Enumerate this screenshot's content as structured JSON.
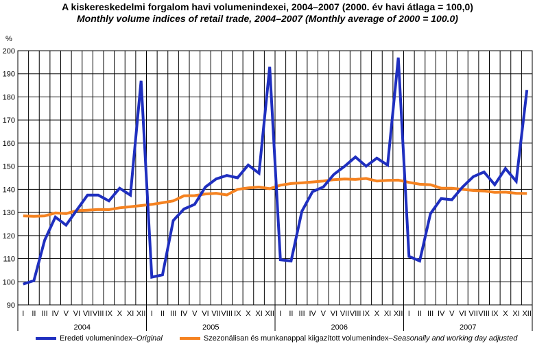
{
  "chart_data": {
    "type": "line",
    "title": "A kiskereskedelmi forgalom havi volumenindexei, 2004–2007 (2000. év havi átlaga = 100,0)",
    "subtitle": "Monthly volume indices of retail trade, 2004–2007 (Monthly average of 2000 = 100.0)",
    "ylabel": "%",
    "ylim": [
      90,
      200
    ],
    "yticks": [
      90,
      100,
      110,
      120,
      130,
      140,
      150,
      160,
      170,
      180,
      190,
      200
    ],
    "months": [
      "I",
      "II",
      "III",
      "IV",
      "V",
      "VI",
      "VII",
      "VIII",
      "IX",
      "X",
      "XI",
      "XII"
    ],
    "years": [
      "2004",
      "2005",
      "2006",
      "2007"
    ],
    "grid": true,
    "legend_position": "bottom",
    "series": [
      {
        "name": "Eredeti volumenindex",
        "name_en": "Original",
        "separator": " – ",
        "color": "#1f2fbf",
        "values": [
          99,
          100.5,
          118,
          128,
          124.5,
          131,
          137.5,
          137.5,
          135,
          140.5,
          137.5,
          187,
          102,
          103,
          126.5,
          131.5,
          133.5,
          141,
          144.5,
          146,
          145,
          150.5,
          147,
          193,
          109.5,
          109,
          130.5,
          139,
          141,
          146.5,
          150,
          154,
          150,
          153.5,
          150.5,
          197,
          111,
          109,
          129.5,
          136,
          135.5,
          141,
          145.5,
          147.5,
          142,
          149,
          143.5,
          183
        ]
      },
      {
        "name": "Szezonálisan és munkanappal kiigazított volumenindex",
        "name_en": "Seasonally and working day adjusted",
        "separator": " – ",
        "color": "#f58220",
        "values": [
          128.5,
          128.3,
          128.5,
          129.8,
          129.5,
          130.8,
          131,
          131.3,
          131.2,
          132,
          132.5,
          133,
          133.5,
          134.2,
          135,
          137.2,
          137.3,
          138,
          138.3,
          137.6,
          140,
          140.6,
          141,
          140.3,
          141.8,
          142.5,
          142.8,
          143.2,
          143.6,
          144.2,
          144.5,
          144.3,
          144.7,
          143.6,
          143.9,
          144,
          143,
          142.2,
          142,
          140.5,
          140.5,
          140,
          139.5,
          139.3,
          138.7,
          138.8,
          138.3,
          138.2
        ]
      }
    ]
  }
}
